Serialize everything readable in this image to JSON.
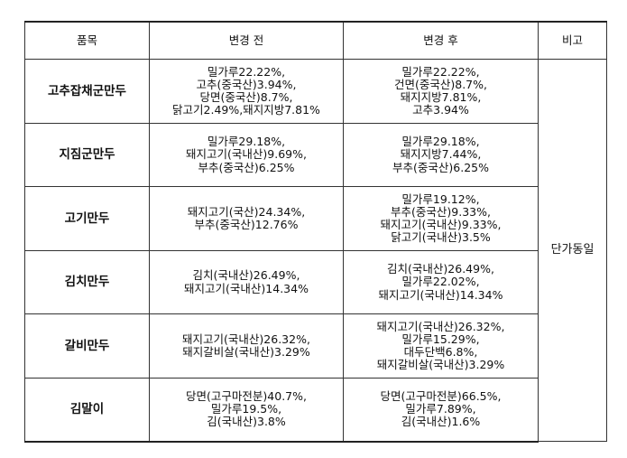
{
  "header": {
    "item": "품목",
    "before": "변경 전",
    "after": "변경 후",
    "remark": "비고"
  },
  "remark_text": "단가동일",
  "rows": [
    {
      "item": "고추잡채군만두",
      "before": [
        "밀가루22.22%,",
        "고추(중국산)3.94%,",
        "당면(중국산)8.7%,",
        "닭고기2.49%,돼지지방7.81%"
      ],
      "after": [
        "밀가루22.22%,",
        "건면(중국산)8.7%,",
        "돼지지방7.81%,",
        "고추3.94%"
      ]
    },
    {
      "item": "지짐군만두",
      "before": [
        "밀가루29.18%,",
        "돼지고기(국내산)9.69%,",
        "부추(중국산)6.25%"
      ],
      "after": [
        "밀가루29.18%,",
        "돼지지방7.44%,",
        "부추(중국산)6.25%"
      ]
    },
    {
      "item": "고기만두",
      "before": [
        "돼지고기(국산)24.34%,",
        "부추(중국산)12.76%"
      ],
      "after": [
        "밀가루19.12%,",
        "부추(중국산)9.33%,",
        "돼지고기(국내산)9.33%,",
        "닭고기(국내산)3.5%"
      ]
    },
    {
      "item": "김치만두",
      "before": [
        "김치(국내산)26.49%,",
        "돼지고기(국내산)14.34%"
      ],
      "after": [
        "김치(국내산)26.49%,",
        "밀가루22.02%,",
        "돼지고기(국내산)14.34%"
      ]
    },
    {
      "item": "갈비만두",
      "before": [
        "돼지고기(국내산)26.32%,",
        "돼지갈비살(국내산)3.29%"
      ],
      "after": [
        "돼지고기(국내산)26.32%,",
        "밀가루15.29%,",
        "대두단백6.8%,",
        "돼지갈비살(국내산)3.29%"
      ]
    },
    {
      "item": "김말이",
      "before": [
        "당면(고구마전분)40.7%,",
        "밀가루19.5%,",
        "김(국내산)3.8%"
      ],
      "after": [
        "당면(고구마전분)66.5%,",
        "밀가루7.89%,",
        "김(국내산)1.6%"
      ]
    }
  ]
}
